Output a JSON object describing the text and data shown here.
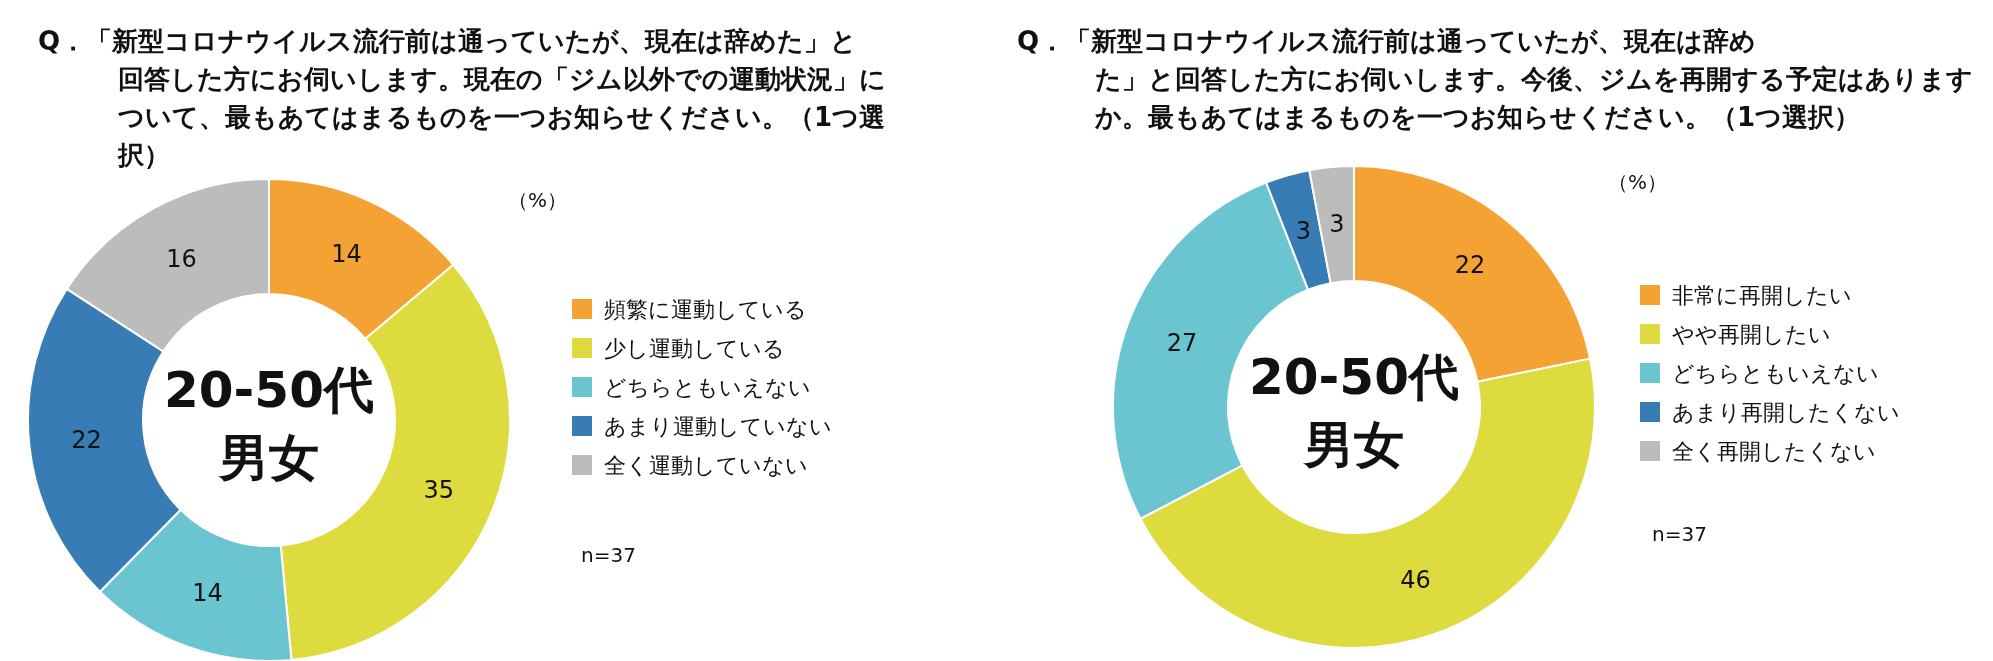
{
  "chart_data": [
    {
      "type": "donut",
      "title": "Q．「新型コロナウイルス流行前は通っていたが、現在は辞めた」と回答した方にお伺いします。現在の「ジム以外での運動状況」について、最もあてはまるものを一つお知らせください。（1つ選択）",
      "categories": [
        "頻繁に運動している",
        "少し運動している",
        "どちらともいえない",
        "あまり運動していない",
        "全く運動していない"
      ],
      "values": [
        14,
        35,
        14,
        22,
        16
      ],
      "colors": [
        "#f4a233",
        "#dedb3e",
        "#6bc5d0",
        "#377cb4",
        "#bbbcbc"
      ],
      "data_labels": true,
      "legend": "right",
      "annotations": [
        "20-50代",
        "男女",
        "（%）",
        "n=37"
      ]
    },
    {
      "type": "donut",
      "title": "Q．「新型コロナウイルス流行前は通っていたが、現在は辞めた」と回答した方にお伺いします。今後、ジムを再開する予定はありますか。最もあてはまるものを一つお知らせください。（1つ選択）",
      "categories": [
        "非常に再開したい",
        "やや再開したい",
        "どちらともいえない",
        "あまり再開したくない",
        "全く再開したくない"
      ],
      "values": [
        22,
        46,
        27,
        3,
        3
      ],
      "colors": [
        "#f4a233",
        "#dedb3e",
        "#6bc5d0",
        "#377cb4",
        "#bbbcbc"
      ],
      "data_labels": true,
      "legend": "right",
      "annotations": [
        "20-50代",
        "男女",
        "（%）",
        "n=37"
      ]
    }
  ]
}
